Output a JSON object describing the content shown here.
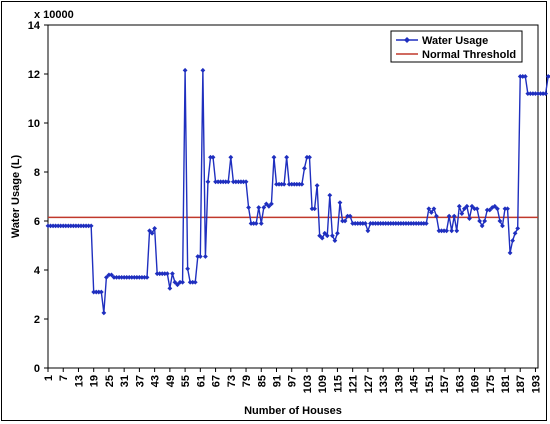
{
  "chart_data": {
    "type": "line",
    "multiplier_label": "x 10000",
    "xlabel": "Number of Houses",
    "ylabel": "Water Usage (L)",
    "ylim": [
      0,
      14
    ],
    "y_ticks": [
      "0",
      "2",
      "4",
      "6",
      "8",
      "10",
      "12",
      "14"
    ],
    "x_tick_labels": [
      "1",
      "7",
      "13",
      "19",
      "25",
      "31",
      "37",
      "43",
      "49",
      "55",
      "61",
      "67",
      "73",
      "79",
      "85",
      "91",
      "97",
      "103",
      "109",
      "115",
      "121",
      "127",
      "133",
      "139",
      "145",
      "151",
      "157",
      "163",
      "169",
      "175",
      "181",
      "187",
      "193"
    ],
    "x_range": [
      1,
      194
    ],
    "legend": {
      "position": "top-right",
      "entries": [
        "Water Usage",
        "Normal Threshold"
      ]
    },
    "series": [
      {
        "name": "Water Usage",
        "color": "#1f2fbf",
        "marker": "diamond",
        "points": [
          [
            1,
            5.8
          ],
          [
            18,
            5.8
          ],
          [
            19,
            3.1
          ],
          [
            22,
            3.1
          ],
          [
            23,
            2.25
          ],
          [
            24,
            3.7
          ],
          [
            25,
            3.8
          ],
          [
            27,
            3.7
          ],
          [
            40,
            3.7
          ],
          [
            41,
            5.6
          ],
          [
            42,
            5.5
          ],
          [
            43,
            5.7
          ],
          [
            44,
            3.85
          ],
          [
            48,
            3.85
          ],
          [
            49,
            3.25
          ],
          [
            50,
            3.85
          ],
          [
            51,
            3.5
          ],
          [
            52,
            3.4
          ],
          [
            53,
            3.5
          ],
          [
            54,
            3.5
          ],
          [
            55,
            12.15
          ],
          [
            56,
            4.05
          ],
          [
            57,
            3.5
          ],
          [
            59,
            3.5
          ],
          [
            60,
            4.55
          ],
          [
            61,
            4.55
          ],
          [
            62,
            12.15
          ],
          [
            63,
            4.55
          ],
          [
            64,
            7.6
          ],
          [
            65,
            8.6
          ],
          [
            66,
            8.6
          ],
          [
            67,
            7.6
          ],
          [
            72,
            7.6
          ],
          [
            73,
            8.6
          ],
          [
            74,
            7.6
          ],
          [
            79,
            7.6
          ],
          [
            80,
            6.55
          ],
          [
            81,
            5.9
          ],
          [
            83,
            5.9
          ],
          [
            84,
            6.55
          ],
          [
            85,
            5.9
          ],
          [
            86,
            6.55
          ],
          [
            87,
            6.7
          ],
          [
            88,
            6.6
          ],
          [
            89,
            6.7
          ],
          [
            90,
            8.6
          ],
          [
            91,
            7.5
          ],
          [
            94,
            7.5
          ],
          [
            95,
            8.6
          ],
          [
            96,
            7.5
          ],
          [
            101,
            7.5
          ],
          [
            102,
            8.15
          ],
          [
            103,
            8.6
          ],
          [
            104,
            8.6
          ],
          [
            105,
            6.5
          ],
          [
            106,
            6.5
          ],
          [
            107,
            7.45
          ],
          [
            108,
            5.4
          ],
          [
            109,
            5.3
          ],
          [
            110,
            5.5
          ],
          [
            111,
            5.4
          ],
          [
            112,
            7.05
          ],
          [
            113,
            5.4
          ],
          [
            114,
            5.2
          ],
          [
            115,
            5.5
          ],
          [
            116,
            6.75
          ],
          [
            117,
            6.0
          ],
          [
            118,
            6.0
          ],
          [
            119,
            6.2
          ],
          [
            120,
            6.2
          ],
          [
            121,
            5.9
          ],
          [
            126,
            5.9
          ],
          [
            127,
            5.6
          ],
          [
            128,
            5.9
          ],
          [
            150,
            5.9
          ],
          [
            151,
            6.5
          ],
          [
            152,
            6.35
          ],
          [
            153,
            6.5
          ],
          [
            154,
            6.2
          ],
          [
            155,
            5.6
          ],
          [
            158,
            5.6
          ],
          [
            159,
            6.2
          ],
          [
            160,
            5.6
          ],
          [
            161,
            6.2
          ],
          [
            162,
            5.6
          ],
          [
            163,
            6.6
          ],
          [
            164,
            6.3
          ],
          [
            165,
            6.5
          ],
          [
            166,
            6.6
          ],
          [
            167,
            6.1
          ],
          [
            168,
            6.6
          ],
          [
            169,
            6.5
          ],
          [
            170,
            6.5
          ],
          [
            171,
            6.0
          ],
          [
            172,
            5.8
          ],
          [
            173,
            6.0
          ],
          [
            174,
            6.45
          ],
          [
            175,
            6.45
          ],
          [
            176,
            6.55
          ],
          [
            177,
            6.6
          ],
          [
            178,
            6.5
          ],
          [
            179,
            6.0
          ],
          [
            180,
            5.8
          ],
          [
            181,
            6.5
          ],
          [
            182,
            6.5
          ],
          [
            183,
            4.7
          ],
          [
            184,
            5.2
          ],
          [
            185,
            5.5
          ],
          [
            186,
            5.7
          ],
          [
            187,
            11.9
          ],
          [
            189,
            11.9
          ],
          [
            190,
            11.2
          ],
          [
            197,
            11.2
          ],
          [
            198,
            11.9
          ],
          [
            199,
            11.9
          ],
          [
            200,
            11.2
          ]
        ]
      },
      {
        "name": "Normal Threshold",
        "color": "#c0392b",
        "value": 6.15
      }
    ]
  }
}
